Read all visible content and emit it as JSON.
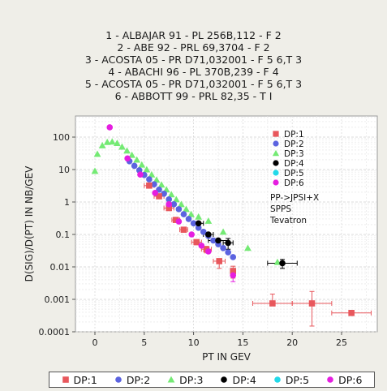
{
  "title_lines": [
    "1 - ALBAJAR 91 - PL 256B,112 - F 2",
    "2 - ABE 92 - PRL 69,3704 - F 2",
    "3 - ACOSTA 05 - PR D71,032001 - F 5 6,T 3",
    "4 - ABACHI 96 - PL 370B,239 - F 4",
    "5 - ACOSTA 05 - PR D71,032001 - F 5 6,T 3",
    "6 - ABBOTT 99 - PRL 82,35 - T I"
  ],
  "notes": [
    "PP->JPSI+X",
    "SPPS",
    "Tevatron"
  ],
  "colors": {
    "DP:1": "#e8575c",
    "DP:2": "#5b63e0",
    "DP:3": "#74ea74",
    "DP:4": "#000000",
    "DP:5": "#22d9e9",
    "DP:6": "#e51ee0"
  },
  "chart_data": {
    "type": "scatter",
    "xlabel": "PT IN GEV",
    "ylabel": "D(SIG)/D(PT) IN NB/GEV",
    "x_scale": "linear",
    "y_scale": "log",
    "xlim": [
      -1,
      29
    ],
    "ylim": [
      0.0001,
      1000
    ],
    "x_ticks": [
      0,
      5,
      10,
      15,
      20,
      25
    ],
    "y_ticks": [
      0.0001,
      0.001,
      0.01,
      0.1,
      1,
      10,
      100
    ],
    "y_tick_labels": [
      "0.0001",
      "0.001",
      "0.01",
      "0.1",
      "1",
      "10",
      "100"
    ],
    "grid": true,
    "legend_position": "top-right",
    "series": [
      {
        "name": "DP:1",
        "marker": "square",
        "x": [
          5.5,
          6.5,
          7.5,
          8.2,
          9.0,
          10.3,
          11.3,
          12.6,
          14.0,
          18.0,
          22.0,
          26.0
        ],
        "y": [
          3.2,
          1.5,
          0.65,
          0.28,
          0.14,
          0.058,
          0.035,
          0.015,
          0.0075,
          0.00075,
          0.00075,
          0.00038
        ],
        "xerr": [
          0.5,
          0.5,
          0.5,
          0.4,
          0.4,
          0.5,
          0.5,
          0.6,
          0,
          2.0,
          2.0,
          2.0
        ],
        "yerr_lo": [
          0,
          0,
          0,
          0,
          0,
          0.01,
          0.008,
          0.006,
          0.003,
          0,
          0.0006,
          0
        ],
        "yerr_hi": [
          0,
          0,
          0,
          0,
          0,
          0.01,
          0.008,
          0.003,
          0.003,
          0.0007,
          0.001,
          5e-05
        ]
      },
      {
        "name": "DP:2",
        "marker": "circle",
        "x": [
          3.5,
          4.0,
          4.5,
          5.0,
          5.5,
          6.0,
          6.5,
          7.0,
          7.5,
          8.0,
          8.5,
          9.0,
          9.5,
          10.0,
          10.5,
          11.0,
          11.5,
          12.0,
          12.5,
          13.0,
          13.5,
          14.0
        ],
        "y": [
          18,
          13,
          9.5,
          6.8,
          5.0,
          3.5,
          2.4,
          1.8,
          1.2,
          0.85,
          0.6,
          0.42,
          0.3,
          0.22,
          0.16,
          0.12,
          0.09,
          0.065,
          0.05,
          0.038,
          0.028,
          0.02
        ],
        "xerr": [],
        "yerr_lo": [],
        "yerr_hi": []
      },
      {
        "name": "DP:3",
        "marker": "triangle",
        "x": [
          0,
          0.25,
          0.75,
          1.25,
          1.75,
          2.25,
          2.75,
          3.25,
          3.75,
          4.25,
          4.75,
          5.25,
          5.75,
          6.25,
          6.75,
          7.25,
          7.75,
          8.25,
          8.75,
          9.25,
          9.75,
          10.5,
          11.5,
          13.0,
          15.5,
          18.5
        ],
        "y": [
          9,
          30,
          55,
          70,
          72,
          65,
          50,
          38,
          28,
          20,
          14,
          10,
          7,
          4.8,
          3.4,
          2.4,
          1.7,
          1.2,
          0.85,
          0.6,
          0.42,
          0.35,
          0.26,
          0.12,
          0.038,
          0.014
        ],
        "xerr": [],
        "yerr_lo": [],
        "yerr_hi": []
      },
      {
        "name": "DP:4",
        "marker": "circle",
        "x": [
          10.5,
          11.5,
          12.5,
          13.5,
          19.0
        ],
        "y": [
          0.22,
          0.1,
          0.065,
          0.055,
          0.013
        ],
        "xerr": [
          0.5,
          0.5,
          1.0,
          0.5,
          1.5
        ],
        "yerr_lo": [
          0,
          0,
          0,
          0.02,
          0.004
        ],
        "yerr_hi": [
          0,
          0,
          0,
          0.02,
          0.004
        ]
      },
      {
        "name": "DP:5",
        "marker": "circle",
        "x": [],
        "y": [],
        "xerr": [],
        "yerr_lo": [],
        "yerr_hi": []
      },
      {
        "name": "DP:6",
        "marker": "circle",
        "x": [
          1.5,
          3.3,
          4.6,
          6.1,
          7.5,
          8.5,
          9.8,
          10.8,
          11.5,
          14.0
        ],
        "y": [
          200,
          22,
          7.0,
          1.9,
          0.85,
          0.25,
          0.1,
          0.045,
          0.03,
          0.0055
        ],
        "xerr": [],
        "yerr_lo": [
          0,
          0,
          0,
          0,
          0,
          0,
          0,
          0,
          0,
          0.002
        ],
        "yerr_hi": [
          0,
          0,
          0,
          0,
          0,
          0,
          0,
          0,
          0,
          0.002
        ]
      }
    ]
  }
}
